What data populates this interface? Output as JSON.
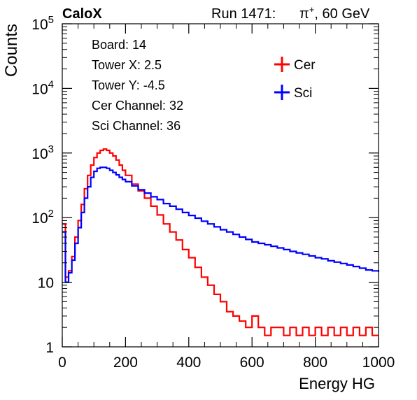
{
  "header": {
    "experiment": "CaloX",
    "run_label": "Run 1471:",
    "beam_particle": "π",
    "beam_charge": "+",
    "beam_energy": ", 60 GeV"
  },
  "info_box": {
    "lines": [
      "Board: 14",
      "Tower X: 2.5",
      "Tower Y: -4.5",
      "Cer Channel: 32",
      "Sci Channel: 36"
    ]
  },
  "chart_data": {
    "type": "line",
    "title": "",
    "xlabel": "Energy HG",
    "ylabel": "Counts",
    "xlim": [
      0,
      1000
    ],
    "ylim": [
      1,
      100000
    ],
    "yscale": "log",
    "x_ticks": [
      0,
      200,
      400,
      600,
      800,
      1000
    ],
    "x_tick_labels": [
      "0",
      "200",
      "400",
      "600",
      "800",
      "1000"
    ],
    "y_ticks": [
      1,
      10,
      100,
      1000,
      10000,
      100000
    ],
    "y_tick_labels": [
      "1",
      "10",
      "10^2",
      "10^3",
      "10^4",
      "10^5"
    ],
    "grid": false,
    "legend_position": "top-right",
    "x": [
      0,
      10,
      20,
      30,
      40,
      50,
      60,
      70,
      80,
      90,
      100,
      110,
      120,
      130,
      140,
      150,
      160,
      170,
      180,
      190,
      200,
      220,
      240,
      260,
      280,
      300,
      320,
      340,
      360,
      380,
      400,
      420,
      440,
      460,
      480,
      500,
      520,
      540,
      560,
      580,
      600,
      620,
      640,
      660,
      680,
      700,
      720,
      740,
      760,
      780,
      800,
      820,
      840,
      860,
      880,
      900,
      920,
      940,
      960,
      980,
      1000
    ],
    "series": [
      {
        "name": "Cer",
        "color": "#ff0000",
        "values": [
          80,
          12,
          15,
          25,
          50,
          90,
          160,
          280,
          450,
          650,
          850,
          1000,
          1100,
          1150,
          1100,
          1000,
          900,
          780,
          650,
          540,
          450,
          330,
          260,
          200,
          150,
          110,
          80,
          60,
          45,
          32,
          24,
          17,
          12,
          9,
          6.5,
          5,
          3.5,
          3,
          2.5,
          2,
          3,
          2,
          1.5,
          2,
          2,
          1.5,
          2,
          1.5,
          2,
          1.5,
          2,
          1.5,
          2,
          1.5,
          2,
          1.5,
          2,
          1.5,
          2,
          1.5,
          1.5
        ]
      },
      {
        "name": "Sci",
        "color": "#0000ff",
        "values": [
          60,
          10,
          14,
          22,
          40,
          70,
          120,
          200,
          300,
          420,
          520,
          580,
          600,
          600,
          580,
          540,
          500,
          460,
          420,
          390,
          360,
          310,
          270,
          240,
          210,
          190,
          165,
          150,
          135,
          120,
          108,
          98,
          88,
          80,
          72,
          65,
          60,
          55,
          50,
          46,
          42,
          40,
          38,
          36,
          34,
          32,
          30,
          28.5,
          27,
          25.5,
          24,
          23,
          21.5,
          20.5,
          19.5,
          18.5,
          17.5,
          16.5,
          15.5,
          15,
          14.5
        ]
      }
    ]
  }
}
